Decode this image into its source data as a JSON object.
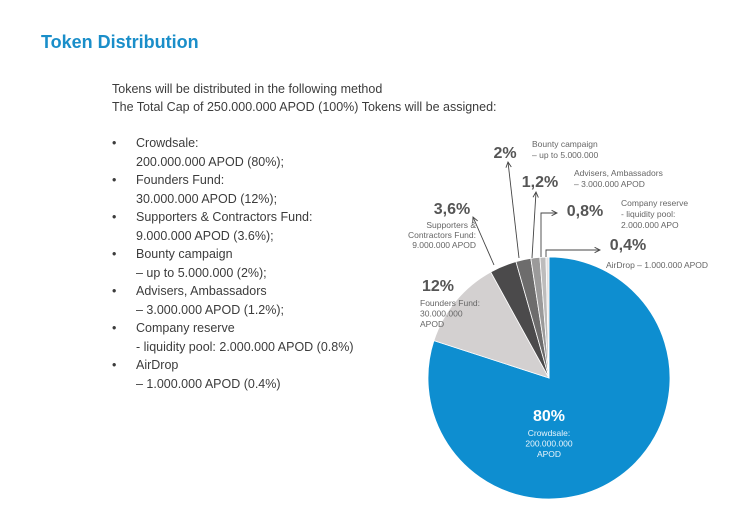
{
  "title": "Token Distribution",
  "intro": [
    "Tokens will be distributed in the following method",
    "The Total Cap of 250.000.000 APOD (100%) Tokens will be assigned:"
  ],
  "bullet_char": "•",
  "list": [
    {
      "name": "Crowdsale:",
      "detail": "200.000.000 APOD (80%);"
    },
    {
      "name": "Founders Fund:",
      "detail": "30.000.000 APOD (12%);"
    },
    {
      "name": "Supporters & Contractors Fund:",
      "detail": "9.000.000 APOD (3.6%);"
    },
    {
      "name": "Bounty campaign",
      "detail": "– up to 5.000.000 (2%);"
    },
    {
      "name": "Advisers, Ambassadors",
      "detail": "– 3.000.000 APOD (1.2%);"
    },
    {
      "name": "Company reserve",
      "detail": "- liquidity pool: 2.000.000 APOD (0.8%)"
    },
    {
      "name": "AirDrop",
      "detail": "– 1.000.000 APOD (0.4%)"
    }
  ],
  "chart_data": {
    "type": "pie",
    "slices": [
      {
        "pct_label": "80%",
        "value": 80,
        "lines": [
          "Crowdsale:",
          "200.000.000",
          "APOD"
        ],
        "color": "#0e8ed0"
      },
      {
        "pct_label": "12%",
        "value": 12,
        "lines": [
          "Founders Fund:",
          "30.000.000",
          "APOD"
        ],
        "color": "#d3d0d0"
      },
      {
        "pct_label": "3,6%",
        "value": 3.6,
        "lines": [
          "Supporters &",
          "Contractors Fund:",
          "9.000.000 APOD"
        ],
        "color": "#4b4a4b"
      },
      {
        "pct_label": "2%",
        "value": 2,
        "lines": [
          "Bounty campaign",
          "– up to 5.000.000"
        ],
        "color": "#6d6c6c"
      },
      {
        "pct_label": "1,2%",
        "value": 1.2,
        "lines": [
          "Advisers, Ambassadors",
          "– 3.000.000 APOD"
        ],
        "color": "#9b9a9a"
      },
      {
        "pct_label": "0,8%",
        "value": 0.8,
        "lines": [
          "Company reserve",
          "- liquidity pool:",
          "2.000.000 APO"
        ],
        "color": "#bdbcbc"
      },
      {
        "pct_label": "0,4%",
        "value": 0.4,
        "lines": [
          "AirDrop – 1.000.000 APOD"
        ],
        "color": "#e4e2e2"
      }
    ]
  }
}
